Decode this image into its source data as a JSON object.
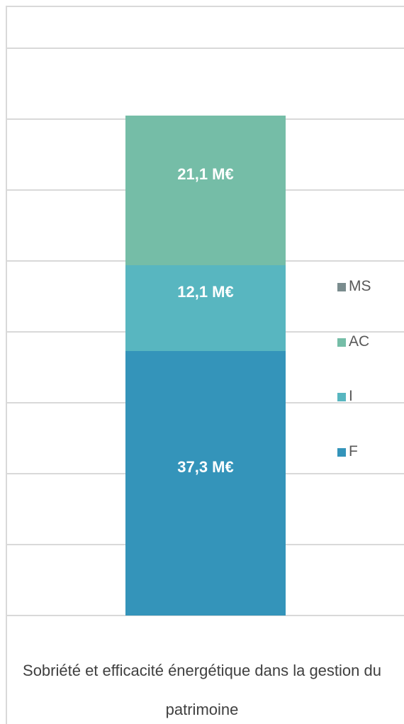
{
  "chart_data": {
    "type": "stacked_bar",
    "categories": [
      "Sobriété et efficacité énergétique dans la gestion du patrimoine"
    ],
    "series": [
      {
        "name": "F",
        "color": "#3494ba",
        "values": [
          37.3
        ],
        "value_labels": [
          "37,3 M€"
        ]
      },
      {
        "name": "I",
        "color": "#58b6c0",
        "values": [
          12.1
        ],
        "value_labels": [
          "12,1 M€"
        ]
      },
      {
        "name": "AC",
        "color": "#75bda7",
        "values": [
          21.1
        ],
        "value_labels": [
          "21,1 M€"
        ]
      },
      {
        "name": "MS",
        "color": "#7a8c8e",
        "values": [
          0
        ],
        "value_labels": [
          null
        ]
      }
    ],
    "ylim": [
      0,
      80
    ],
    "yticks": [
      0,
      10,
      20,
      30,
      40,
      50,
      60,
      70,
      80
    ],
    "grid": true,
    "legend": "right"
  }
}
